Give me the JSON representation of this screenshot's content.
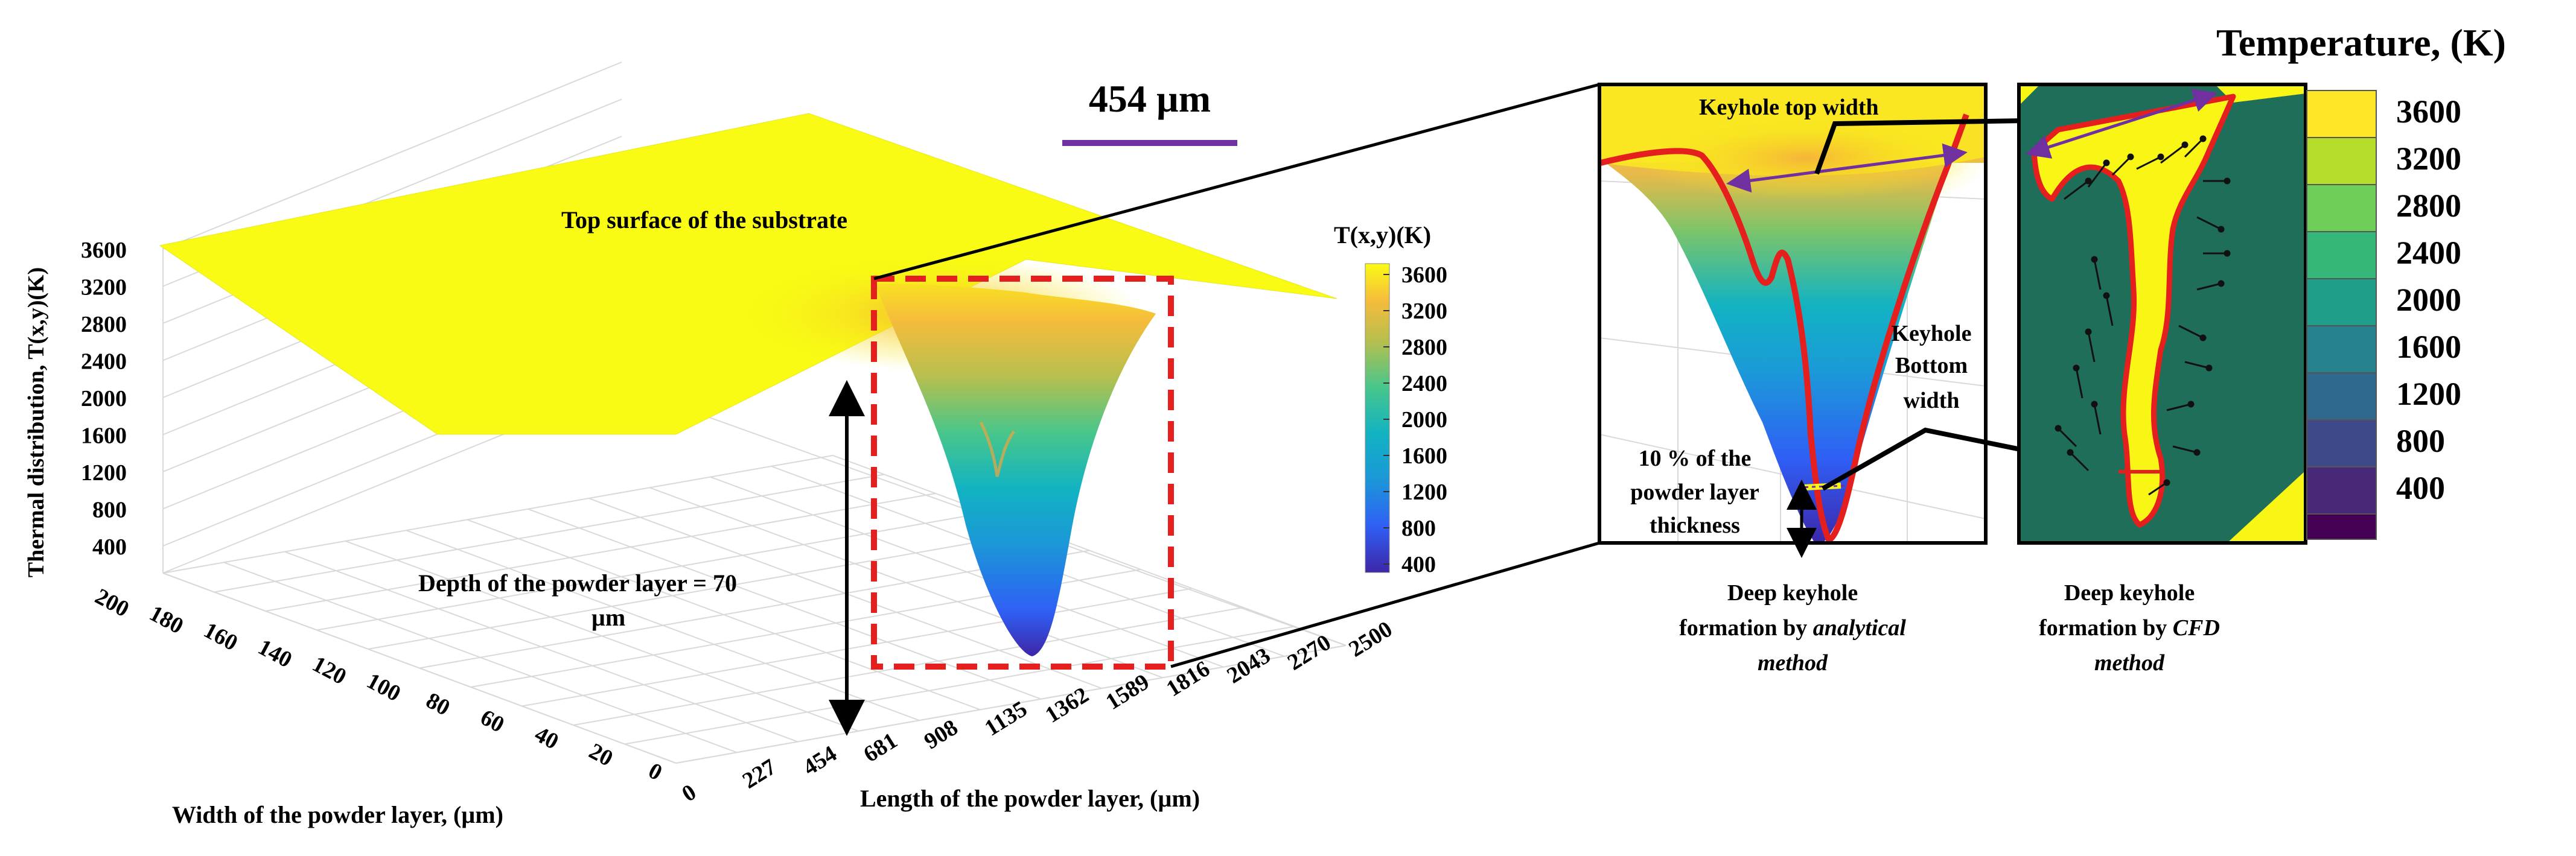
{
  "scale_bar": {
    "label": "454 µm",
    "color": "#7030a0"
  },
  "surface_plot": {
    "zlabel": "Thermal distribution, T(x,y)(K)",
    "xlabel": "Length of the powder layer, (µm)",
    "ylabel": "Width of the powder layer, (µm)",
    "annotation_top": "Top surface of the substrate",
    "annotation_depth_line1": "Depth of the powder layer = 70",
    "annotation_depth_line2": "µm",
    "colorbar_title": "T(x,y)(K)",
    "colorbar_ticks": [
      "3600",
      "3200",
      "2800",
      "2400",
      "2000",
      "1600",
      "1200",
      "800",
      "400"
    ]
  },
  "chart_data": {
    "type": "surface",
    "title": "",
    "zlabel": "Thermal distribution, T(x,y)(K)",
    "xlabel": "Length of the powder layer, (µm)",
    "ylabel": "Width of the powder layer, (µm)",
    "x_ticks": [
      0,
      227,
      454,
      681,
      908,
      1135,
      1362,
      1589,
      1816,
      2043,
      2270,
      2500
    ],
    "y_ticks": [
      200,
      180,
      160,
      140,
      120,
      100,
      80,
      60,
      40,
      20,
      0
    ],
    "z_ticks": [
      3600,
      3200,
      2800,
      2400,
      2000,
      1600,
      1200,
      800,
      400
    ],
    "xlim": [
      0,
      2500
    ],
    "ylim": [
      0,
      200
    ],
    "zlim": [
      400,
      3600
    ],
    "grid": true,
    "surface_plateau_K": 3600,
    "keyhole_minimum_K": 400,
    "keyhole_center_x_um": 1589,
    "colormap": "parula",
    "colorbar_range": [
      400,
      3600
    ]
  },
  "zoom_analytical": {
    "label_top_width": "Keyhole top width",
    "label_bottom_line1": "Keyhole",
    "label_bottom_line2": "Bottom",
    "label_bottom_line3": "width",
    "label_percent_line1": "10 % of the",
    "label_percent_line2": "powder layer",
    "label_percent_line3": "thickness",
    "caption_line1": "Deep keyhole",
    "caption_line2_plain": "formation by ",
    "caption_line2_italic": "analytical",
    "caption_line3": "method"
  },
  "zoom_cfd": {
    "caption_line1": "Deep keyhole",
    "caption_line2_plain": "formation by ",
    "caption_line2_italic": "CFD",
    "caption_line3": "method"
  },
  "temp_legend": {
    "title": "Temperature, (K)",
    "labels": [
      "3600",
      "3200",
      "2800",
      "2400",
      "2000",
      "1600",
      "1200",
      "800",
      "400"
    ],
    "colors": [
      "#fde725",
      "#b5de2b",
      "#6ece58",
      "#35b779",
      "#1f9e89",
      "#26828e",
      "#31688e",
      "#3e4989",
      "#482878",
      "#440154"
    ]
  },
  "colors": {
    "highlight_red": "#e51e1e",
    "arrow_purple": "#7030a0",
    "cfd_green": "#1f6e5a"
  }
}
